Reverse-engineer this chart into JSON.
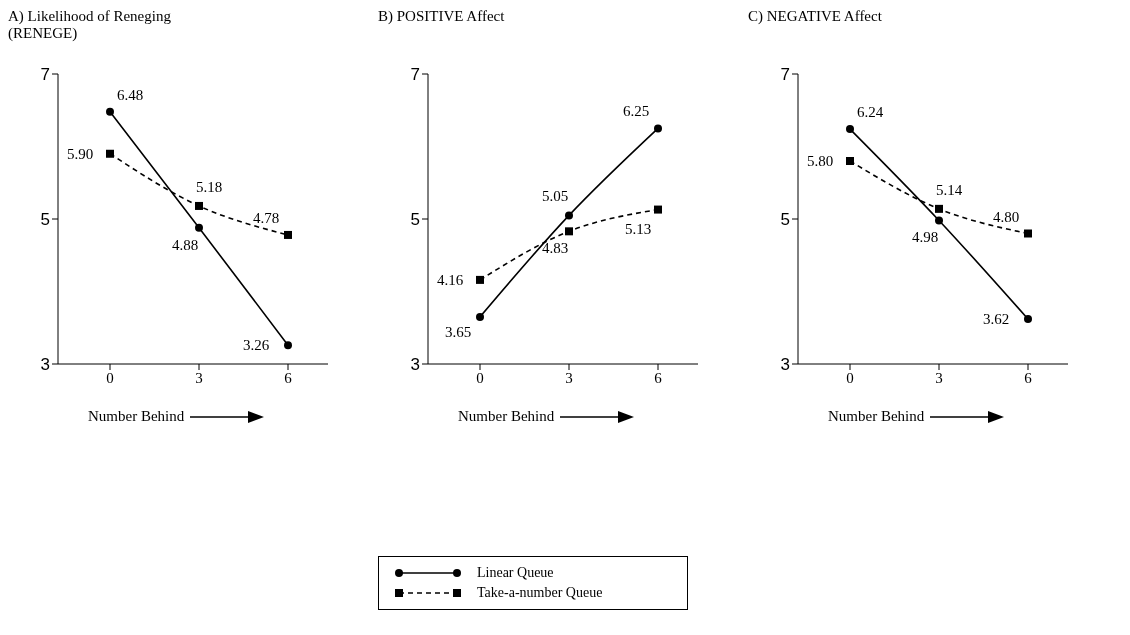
{
  "chart_data": [
    {
      "type": "line",
      "title": "A) Likelihood of Reneging (RENEGE)",
      "xlabel": "Number Behind",
      "categories": [
        "0",
        "3",
        "6"
      ],
      "ylim": [
        3,
        7
      ],
      "yticks": [
        3,
        5,
        7
      ],
      "grid": false,
      "legend": false,
      "data_labels": true,
      "series": [
        {
          "color": "#000000",
          "line_style": "solid",
          "marker": "circle",
          "values": [
            6.48,
            4.88,
            3.26
          ]
        },
        {
          "color": "#000000",
          "line_style": "dashed",
          "marker": "square",
          "values": [
            5.9,
            5.18,
            4.78
          ],
          "value_labels": [
            "5.90",
            "5.18",
            "4.78"
          ]
        }
      ]
    },
    {
      "type": "line",
      "title": "B) POSITIVE Affect",
      "xlabel": "Number Behind",
      "categories": [
        "0",
        "3",
        "6"
      ],
      "ylim": [
        3,
        7
      ],
      "yticks": [
        3,
        5,
        7
      ],
      "grid": false,
      "legend": "bottom",
      "data_labels": true,
      "series": [
        {
          "name": "Linear Queue",
          "color": "#000000",
          "line_style": "solid",
          "marker": "circle",
          "values": [
            3.65,
            5.05,
            6.25
          ]
        },
        {
          "name": "Take-a-number Queue",
          "color": "#000000",
          "line_style": "dashed",
          "marker": "square",
          "values": [
            4.16,
            4.83,
            5.13
          ]
        }
      ]
    },
    {
      "type": "line",
      "title": "C) NEGATIVE Affect",
      "xlabel": "Number Behind",
      "categories": [
        "0",
        "3",
        "6"
      ],
      "ylim": [
        3,
        7
      ],
      "yticks": [
        3,
        5,
        7
      ],
      "grid": false,
      "legend": false,
      "data_labels": true,
      "series": [
        {
          "color": "#000000",
          "line_style": "solid",
          "marker": "circle",
          "values": [
            6.24,
            4.98,
            3.62
          ]
        },
        {
          "color": "#000000",
          "line_style": "dashed",
          "marker": "square",
          "values": [
            5.8,
            5.14,
            4.8
          ],
          "value_labels": [
            "5.80",
            "5.14",
            "4.80"
          ]
        }
      ]
    }
  ]
}
